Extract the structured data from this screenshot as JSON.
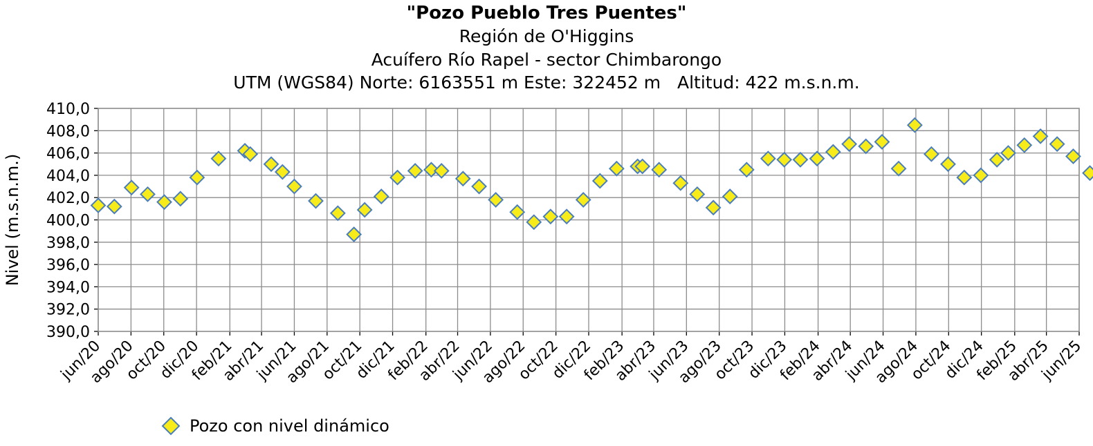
{
  "colors": {
    "marker_fill": "#f7ec1a",
    "marker_stroke": "#4a7ebb",
    "grid": "#8c8c8c",
    "axis": "#000000",
    "background": "#ffffff"
  },
  "chart_data": {
    "type": "scatter",
    "title": "\"Pozo Pueblo Tres Puentes\"",
    "subtitles": [
      "Región de O'Higgins",
      "Acuífero Río Rapel - sector Chimbarongo",
      "UTM (WGS84) Norte: 6163551 m Este: 322452 m   Altitud: 422 m.s.n.m."
    ],
    "ylabel": "Nivel (m.s.n.m.)",
    "xlabel": "",
    "ylim": [
      390,
      410
    ],
    "ytick_step": 2,
    "yticks": [
      "390,0",
      "392,0",
      "394,0",
      "396,0",
      "398,0",
      "400,0",
      "402,0",
      "404,0",
      "406,0",
      "408,0",
      "410,0"
    ],
    "xlim": [
      "2020-06-01",
      "2025-06-01"
    ],
    "xticks": [
      {
        "date": "2020-06-01",
        "label": "jun/20"
      },
      {
        "date": "2020-08-01",
        "label": "ago/20"
      },
      {
        "date": "2020-10-01",
        "label": "oct/20"
      },
      {
        "date": "2020-12-01",
        "label": "dic/20"
      },
      {
        "date": "2021-02-01",
        "label": "feb/21"
      },
      {
        "date": "2021-04-01",
        "label": "abr/21"
      },
      {
        "date": "2021-06-01",
        "label": "jun/21"
      },
      {
        "date": "2021-08-01",
        "label": "ago/21"
      },
      {
        "date": "2021-10-01",
        "label": "oct/21"
      },
      {
        "date": "2021-12-01",
        "label": "dic/21"
      },
      {
        "date": "2022-02-01",
        "label": "feb/22"
      },
      {
        "date": "2022-04-01",
        "label": "abr/22"
      },
      {
        "date": "2022-06-01",
        "label": "jun/22"
      },
      {
        "date": "2022-08-01",
        "label": "ago/22"
      },
      {
        "date": "2022-10-01",
        "label": "oct/22"
      },
      {
        "date": "2022-12-01",
        "label": "dic/22"
      },
      {
        "date": "2023-02-01",
        "label": "feb/23"
      },
      {
        "date": "2023-04-01",
        "label": "abr/23"
      },
      {
        "date": "2023-06-01",
        "label": "jun/23"
      },
      {
        "date": "2023-08-01",
        "label": "ago/23"
      },
      {
        "date": "2023-10-01",
        "label": "oct/23"
      },
      {
        "date": "2023-12-01",
        "label": "dic/23"
      },
      {
        "date": "2024-02-01",
        "label": "feb/24"
      },
      {
        "date": "2024-04-01",
        "label": "abr/24"
      },
      {
        "date": "2024-06-01",
        "label": "jun/24"
      },
      {
        "date": "2024-08-01",
        "label": "ago/24"
      },
      {
        "date": "2024-10-01",
        "label": "oct/24"
      },
      {
        "date": "2024-12-01",
        "label": "dic/24"
      },
      {
        "date": "2025-02-01",
        "label": "feb/25"
      },
      {
        "date": "2025-04-01",
        "label": "abr/25"
      },
      {
        "date": "2025-06-01",
        "label": "jun/25"
      }
    ],
    "grid": true,
    "legend_position": "bottom-left",
    "series": [
      {
        "name": "Pozo con nivel dinámico",
        "marker": "diamond",
        "points": [
          {
            "x": "2020-06-01",
            "y": 401.3
          },
          {
            "x": "2020-07-01",
            "y": 401.2
          },
          {
            "x": "2020-08-02",
            "y": 402.9
          },
          {
            "x": "2020-09-01",
            "y": 402.3
          },
          {
            "x": "2020-10-02",
            "y": 401.6
          },
          {
            "x": "2020-11-01",
            "y": 401.9
          },
          {
            "x": "2020-12-02",
            "y": 403.8
          },
          {
            "x": "2021-01-11",
            "y": 405.5
          },
          {
            "x": "2021-03-01",
            "y": 406.2
          },
          {
            "x": "2021-03-11",
            "y": 405.9
          },
          {
            "x": "2021-04-19",
            "y": 405.0
          },
          {
            "x": "2021-05-10",
            "y": 404.3
          },
          {
            "x": "2021-06-01",
            "y": 403.0
          },
          {
            "x": "2021-07-11",
            "y": 401.7
          },
          {
            "x": "2021-08-21",
            "y": 400.6
          },
          {
            "x": "2021-09-20",
            "y": 398.7
          },
          {
            "x": "2021-10-10",
            "y": 400.9
          },
          {
            "x": "2021-11-10",
            "y": 402.1
          },
          {
            "x": "2021-12-10",
            "y": 403.8
          },
          {
            "x": "2022-01-12",
            "y": 404.4
          },
          {
            "x": "2022-02-11",
            "y": 404.5
          },
          {
            "x": "2022-03-02",
            "y": 404.4
          },
          {
            "x": "2022-04-11",
            "y": 403.7
          },
          {
            "x": "2022-05-11",
            "y": 403.0
          },
          {
            "x": "2022-06-11",
            "y": 401.8
          },
          {
            "x": "2022-07-21",
            "y": 400.7
          },
          {
            "x": "2022-08-21",
            "y": 399.8
          },
          {
            "x": "2022-09-21",
            "y": 400.3
          },
          {
            "x": "2022-10-21",
            "y": 400.3
          },
          {
            "x": "2022-11-21",
            "y": 401.8
          },
          {
            "x": "2022-12-22",
            "y": 403.5
          },
          {
            "x": "2023-01-22",
            "y": 404.6
          },
          {
            "x": "2023-03-02",
            "y": 404.8
          },
          {
            "x": "2023-03-11",
            "y": 404.8
          },
          {
            "x": "2023-04-11",
            "y": 404.5
          },
          {
            "x": "2023-05-21",
            "y": 403.3
          },
          {
            "x": "2023-06-21",
            "y": 402.3
          },
          {
            "x": "2023-07-21",
            "y": 401.1
          },
          {
            "x": "2023-08-21",
            "y": 402.1
          },
          {
            "x": "2023-09-21",
            "y": 404.5
          },
          {
            "x": "2023-10-31",
            "y": 405.5
          },
          {
            "x": "2023-11-30",
            "y": 405.4
          },
          {
            "x": "2023-12-30",
            "y": 405.4
          },
          {
            "x": "2024-01-30",
            "y": 405.5
          },
          {
            "x": "2024-02-29",
            "y": 406.1
          },
          {
            "x": "2024-03-30",
            "y": 406.8
          },
          {
            "x": "2024-04-30",
            "y": 406.6
          },
          {
            "x": "2024-05-30",
            "y": 407.0
          },
          {
            "x": "2024-06-30",
            "y": 404.6
          },
          {
            "x": "2024-07-30",
            "y": 408.5
          },
          {
            "x": "2024-08-30",
            "y": 405.9
          },
          {
            "x": "2024-09-30",
            "y": 405.0
          },
          {
            "x": "2024-10-30",
            "y": 403.8
          },
          {
            "x": "2024-11-30",
            "y": 404.0
          },
          {
            "x": "2024-12-30",
            "y": 405.4
          },
          {
            "x": "2025-01-20",
            "y": 406.0
          },
          {
            "x": "2025-02-19",
            "y": 406.7
          },
          {
            "x": "2025-03-21",
            "y": 407.5
          },
          {
            "x": "2025-04-21",
            "y": 406.8
          },
          {
            "x": "2025-05-21",
            "y": 405.7
          },
          {
            "x": "2025-06-21",
            "y": 404.2
          }
        ]
      }
    ]
  }
}
